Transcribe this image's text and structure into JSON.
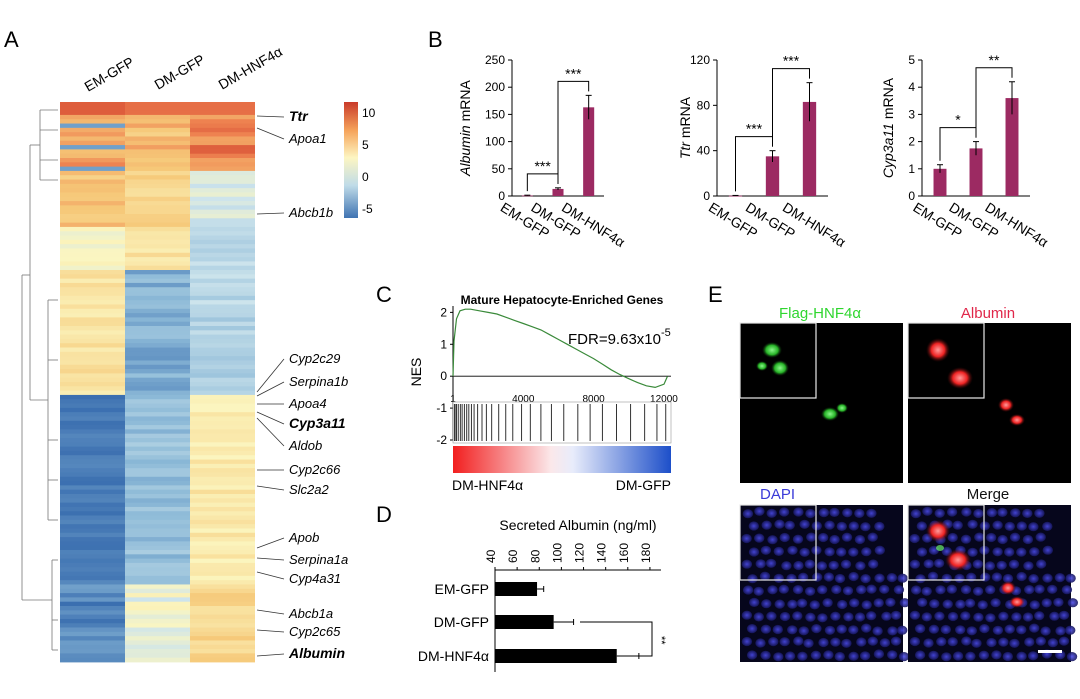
{
  "panels": {
    "A": "A",
    "B": "B",
    "C": "C",
    "D": "D",
    "E": "E"
  },
  "heatmap": {
    "columns": [
      "EM-GFP",
      "DM-GFP",
      "DM-HNF4α"
    ],
    "colorbar_ticks": [
      10,
      5,
      0,
      -5
    ],
    "genes": [
      {
        "name": "Ttr",
        "bold": true
      },
      {
        "name": "Apoa1",
        "bold": false
      },
      {
        "name": "Abcb1b",
        "bold": false
      },
      {
        "name": "Cyp2c29",
        "bold": false
      },
      {
        "name": "Serpina1b",
        "bold": false
      },
      {
        "name": "Apoa4",
        "bold": false
      },
      {
        "name": "Cyp3a11",
        "bold": true
      },
      {
        "name": "Aldob",
        "bold": false
      },
      {
        "name": "Cyp2c66",
        "bold": false
      },
      {
        "name": "Slc2a2",
        "bold": false
      },
      {
        "name": "Apob",
        "bold": false
      },
      {
        "name": "Serpina1a",
        "bold": false
      },
      {
        "name": "Cyp4a31",
        "bold": false
      },
      {
        "name": "Abcb1a",
        "bold": false
      },
      {
        "name": "Cyp2c65",
        "bold": false
      },
      {
        "name": "Albumin",
        "bold": true
      }
    ],
    "colors": {
      "high": "#d7402b",
      "mid": "#fbf6c0",
      "low": "#3d72b5"
    }
  },
  "chart_data": [
    {
      "type": "bar",
      "ylabel_gene": "Albumin",
      "ylabel_unit": "mRNA",
      "categories": [
        "EM-GFP",
        "DM-GFP",
        "DM-HNF4α"
      ],
      "values": [
        1,
        13,
        163
      ],
      "errors": [
        0.5,
        2,
        22
      ],
      "ylim": [
        0,
        250
      ],
      "yticks": [
        0,
        50,
        100,
        150,
        200,
        250
      ],
      "significance": [
        {
          "from": 0,
          "to": 1,
          "label": "***"
        },
        {
          "from": 1,
          "to": 2,
          "label": "***"
        }
      ],
      "color": "#9c2a62"
    },
    {
      "type": "bar",
      "ylabel_gene": "Ttr",
      "ylabel_unit": "mRNA",
      "categories": [
        "EM-GFP",
        "DM-GFP",
        "DM-HNF4α"
      ],
      "values": [
        0.3,
        35,
        83
      ],
      "errors": [
        0.2,
        5,
        17
      ],
      "ylim": [
        0,
        120
      ],
      "yticks": [
        0,
        40,
        80,
        120
      ],
      "significance": [
        {
          "from": 0,
          "to": 1,
          "label": "***"
        },
        {
          "from": 1,
          "to": 2,
          "label": "***"
        }
      ],
      "color": "#9c2a62"
    },
    {
      "type": "bar",
      "ylabel_gene": "Cyp3a11",
      "ylabel_unit": "mRNA",
      "categories": [
        "EM-GFP",
        "DM-GFP",
        "DM-HNF4α"
      ],
      "values": [
        1.0,
        1.75,
        3.6
      ],
      "errors": [
        0.15,
        0.25,
        0.6
      ],
      "ylim": [
        0,
        5
      ],
      "yticks": [
        0,
        1,
        2,
        3,
        4,
        5
      ],
      "significance": [
        {
          "from": 0,
          "to": 1,
          "label": "*"
        },
        {
          "from": 1,
          "to": 2,
          "label": "**"
        }
      ],
      "color": "#9c2a62"
    },
    {
      "type": "line",
      "title": "Mature Hepatocyte-Enriched Genes",
      "ylabel": "NES",
      "annotation_main": "FDR=9.63x10",
      "annotation_exp": "-5",
      "x": [
        1,
        60,
        200,
        400,
        700,
        1000,
        1500,
        2000,
        2500,
        3000,
        3500,
        4000,
        4500,
        5000,
        5500,
        6000,
        6500,
        7000,
        7500,
        8000,
        8500,
        9000,
        9500,
        10000,
        10500,
        11000,
        11500,
        12000,
        12200
      ],
      "y": [
        0.0,
        1.1,
        1.8,
        2.05,
        2.1,
        2.1,
        2.05,
        2.0,
        1.95,
        1.85,
        1.75,
        1.65,
        1.55,
        1.45,
        1.3,
        1.15,
        1.0,
        0.85,
        0.7,
        0.55,
        0.38,
        0.2,
        0.05,
        -0.08,
        -0.2,
        -0.3,
        -0.35,
        -0.25,
        0.0
      ],
      "xticks": [
        1,
        4000,
        8000,
        12000
      ],
      "yticks": [
        2,
        1,
        0,
        -1,
        -2
      ],
      "ylim": [
        -2,
        2.2
      ],
      "xlim": [
        1,
        12400
      ],
      "hits": [
        80,
        120,
        200,
        300,
        420,
        520,
        650,
        780,
        900,
        1050,
        1200,
        1400,
        1650,
        1900,
        2200,
        2600,
        3000,
        3400,
        3900,
        4400,
        5000,
        5600,
        6300,
        7100,
        7800,
        8500,
        9300,
        10100,
        10900,
        11600,
        12100
      ],
      "ranking_left": "DM-HNF4α",
      "ranking_right": "DM-GFP",
      "line_color": "#3a8a3a"
    },
    {
      "type": "bar",
      "orientation": "horizontal",
      "title": "Secreted Albumin (ng/ml)",
      "categories": [
        "EM-GFP",
        "DM-GFP",
        "DM-HNF4α"
      ],
      "values": [
        78,
        93,
        150
      ],
      "errors": [
        6,
        18,
        20
      ],
      "xlim": [
        40,
        190
      ],
      "xticks": [
        40,
        60,
        80,
        100,
        120,
        140,
        160,
        180
      ],
      "significance": [
        {
          "from": 1,
          "to": 2,
          "label": "**"
        }
      ],
      "color": "#000000"
    }
  ],
  "microscopy": {
    "titles": [
      {
        "text": "Flag-HNF4α",
        "color": "#2fd62f"
      },
      {
        "text": "Albumin",
        "color": "#e0274a"
      },
      {
        "text": "DAPI",
        "color": "#3a3ad8"
      },
      {
        "text": "Merge",
        "color": "#111111"
      }
    ]
  }
}
